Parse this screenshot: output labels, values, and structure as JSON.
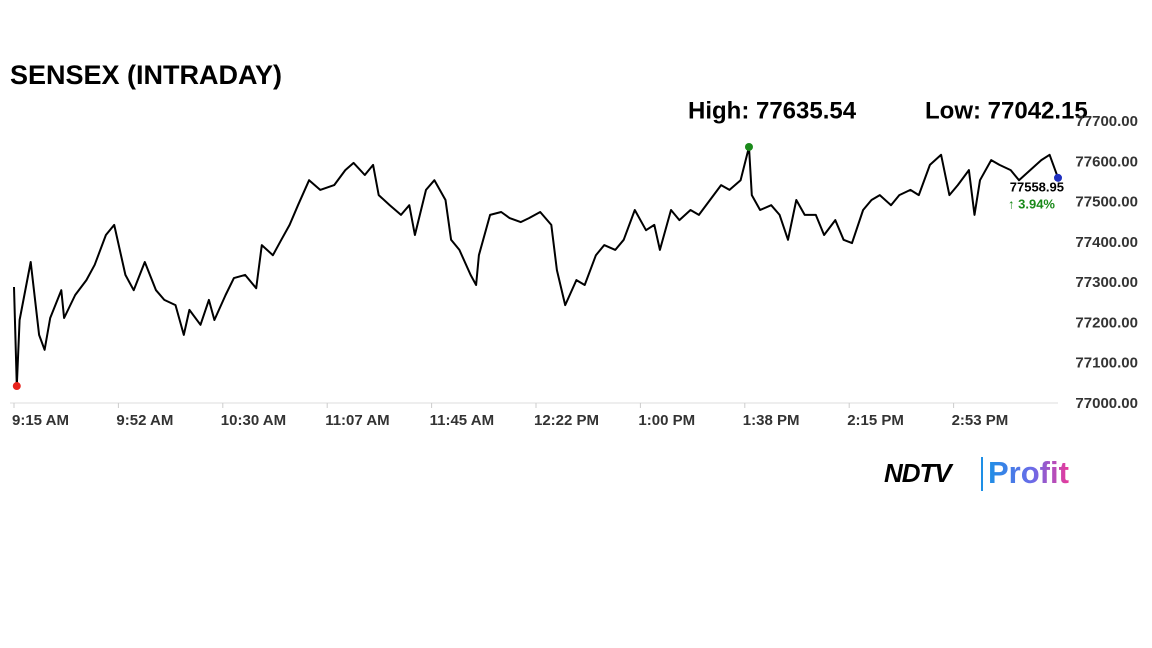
{
  "chart_data": {
    "type": "line",
    "title": "SENSEX (INTRADAY)",
    "high_label": "High: 77635.54",
    "low_label": "Low: 77042.15",
    "last_label": "77558.95",
    "change_label": "↑ 3.94%",
    "x": [
      0,
      1,
      2,
      6,
      9,
      11,
      13,
      17,
      18,
      22,
      26,
      29,
      33,
      36,
      40,
      43,
      47,
      51,
      54,
      58,
      61,
      63,
      67,
      70,
      72,
      76,
      79,
      83,
      87,
      89,
      93,
      96,
      99,
      102,
      106,
      110,
      115,
      119,
      122,
      126,
      129,
      131,
      135,
      139,
      142,
      144,
      148,
      151,
      155,
      157,
      160,
      164,
      166,
      167,
      171,
      175,
      178,
      182,
      185,
      189,
      193,
      195,
      198,
      202,
      205,
      209,
      212,
      216,
      219,
      223,
      227,
      230,
      232,
      236,
      239,
      243,
      246,
      250,
      254,
      257,
      261,
      264,
      265,
      268,
      272,
      275,
      278,
      281,
      284,
      288,
      291,
      295,
      298,
      301,
      305,
      308,
      311,
      315,
      318,
      322,
      325,
      329,
      333,
      336,
      339,
      343,
      345,
      347,
      351,
      354,
      358,
      361,
      365,
      369,
      372,
      375
    ],
    "values": [
      77288,
      77042.15,
      77206,
      77350,
      77169,
      77132,
      77211,
      77280,
      77211,
      77268,
      77305,
      77343,
      77417,
      77442,
      77318,
      77280,
      77350,
      77280,
      77256,
      77243,
      77169,
      77231,
      77194,
      77256,
      77206,
      77268,
      77310,
      77318,
      77285,
      77392,
      77367,
      77405,
      77442,
      77491,
      77553,
      77529,
      77541,
      77578,
      77596,
      77566,
      77591,
      77516,
      77491,
      77467,
      77491,
      77417,
      77529,
      77553,
      77504,
      77405,
      77380,
      77318,
      77293,
      77367,
      77467,
      77474,
      77459,
      77449,
      77459,
      77474,
      77442,
      77330,
      77243,
      77305,
      77293,
      77367,
      77392,
      77380,
      77405,
      77479,
      77429,
      77442,
      77380,
      77479,
      77454,
      77479,
      77467,
      77504,
      77541,
      77529,
      77553,
      77635.54,
      77516,
      77479,
      77491,
      77467,
      77405,
      77504,
      77467,
      77467,
      77417,
      77454,
      77405,
      77397,
      77479,
      77504,
      77516,
      77491,
      77516,
      77529,
      77516,
      77591,
      77616,
      77516,
      77541,
      77578,
      77467,
      77553,
      77603,
      77591,
      77578,
      77553,
      77578,
      77603,
      77616,
      77558.95
    ],
    "color": "#000000",
    "high_color": "#1a8a1a",
    "low_color": "#e8231d",
    "last_color": "#1f2fbf",
    "change_color": "#1a8a1a",
    "xlim": [
      0,
      375
    ],
    "xticks": [
      {
        "value": 0,
        "label": "9:15 AM"
      },
      {
        "value": 37.5,
        "label": "9:52 AM"
      },
      {
        "value": 75,
        "label": "10:30 AM"
      },
      {
        "value": 112.5,
        "label": "11:07 AM"
      },
      {
        "value": 150,
        "label": "11:45 AM"
      },
      {
        "value": 187.5,
        "label": "12:22 PM"
      },
      {
        "value": 225,
        "label": "1:00 PM"
      },
      {
        "value": 262.5,
        "label": "1:38 PM"
      },
      {
        "value": 300,
        "label": "2:15 PM"
      },
      {
        "value": 337.5,
        "label": "2:53 PM"
      }
    ],
    "ylim": [
      77000,
      77700
    ],
    "yticks": [
      {
        "value": 77000,
        "label": "77000.00"
      },
      {
        "value": 77100,
        "label": "77100.00"
      },
      {
        "value": 77200,
        "label": "77200.00"
      },
      {
        "value": 77300,
        "label": "77300.00"
      },
      {
        "value": 77400,
        "label": "77400.00"
      },
      {
        "value": 77500,
        "label": "77500.00"
      },
      {
        "value": 77600,
        "label": "77600.00"
      },
      {
        "value": 77700,
        "label": "77700.00"
      }
    ],
    "grid": false
  },
  "logo": {
    "left": "NDTV",
    "right": "Profit"
  }
}
